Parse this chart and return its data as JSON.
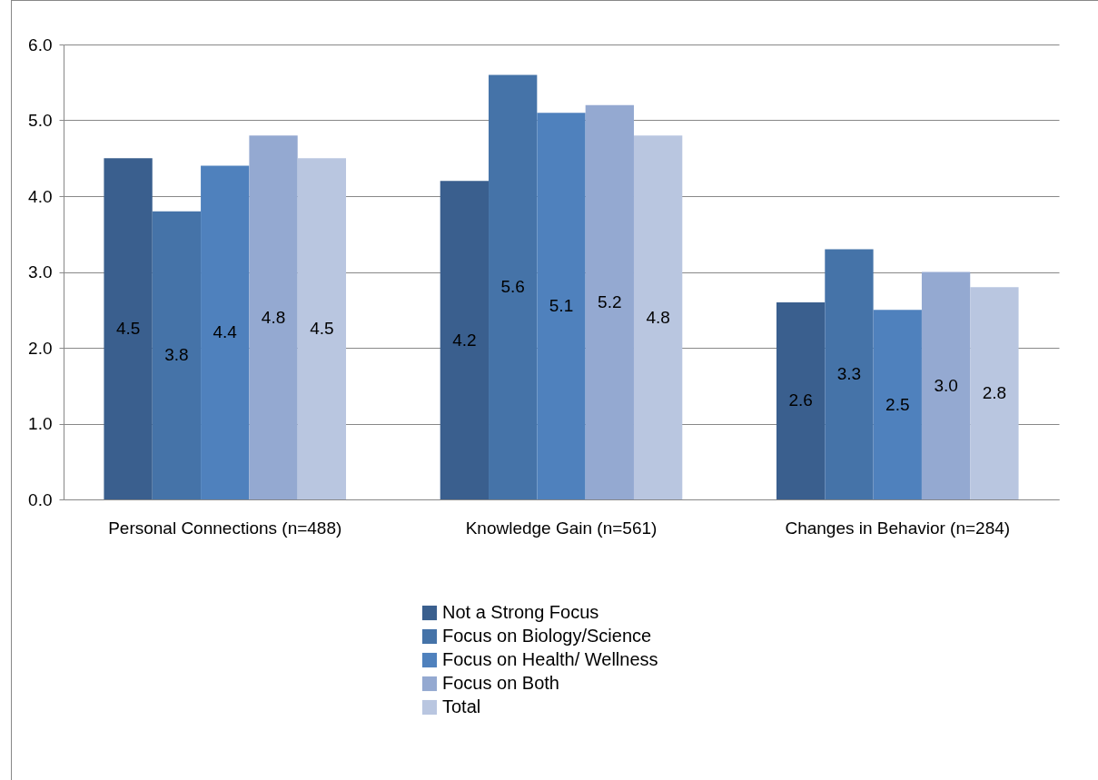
{
  "chart_data": {
    "type": "bar",
    "categories": [
      "Personal Connections (n=488)",
      "Knowledge Gain (n=561)",
      "Changes in Behavior (n=284)"
    ],
    "series": [
      {
        "name": "Not a Strong Focus",
        "color": "#3a5f8e",
        "values": [
          4.5,
          4.2,
          2.6
        ],
        "value_labels": [
          "4.5",
          "4.2",
          "2.6"
        ]
      },
      {
        "name": "Focus on Biology/Science",
        "color": "#4573a8",
        "values": [
          3.8,
          5.6,
          3.3
        ],
        "value_labels": [
          "3.8",
          "5.6",
          "3.3"
        ]
      },
      {
        "name": "Focus on Health/ Wellness",
        "color": "#4f81bd",
        "values": [
          4.4,
          5.1,
          2.5
        ],
        "value_labels": [
          "4.4",
          "5.1",
          "2.5"
        ]
      },
      {
        "name": "Focus on Both",
        "color": "#94a9d1",
        "values": [
          4.8,
          5.2,
          3.0
        ],
        "value_labels": [
          "4.8",
          "5.2",
          "3.0"
        ]
      },
      {
        "name": "Total",
        "color": "#b9c6e0",
        "values": [
          4.5,
          4.8,
          2.8
        ],
        "value_labels": [
          "4.5",
          "4.8",
          "2.8"
        ]
      }
    ],
    "ylim": [
      0,
      6
    ],
    "yticks": [
      {
        "value": 0,
        "label": "0.0"
      },
      {
        "value": 1,
        "label": "1.0"
      },
      {
        "value": 2,
        "label": "2.0"
      },
      {
        "value": 3,
        "label": "3.0"
      },
      {
        "value": 4,
        "label": "4.0"
      },
      {
        "value": 5,
        "label": "5.0"
      },
      {
        "value": 6,
        "label": "6.0"
      }
    ],
    "grid": "y",
    "legend": "bottom"
  }
}
